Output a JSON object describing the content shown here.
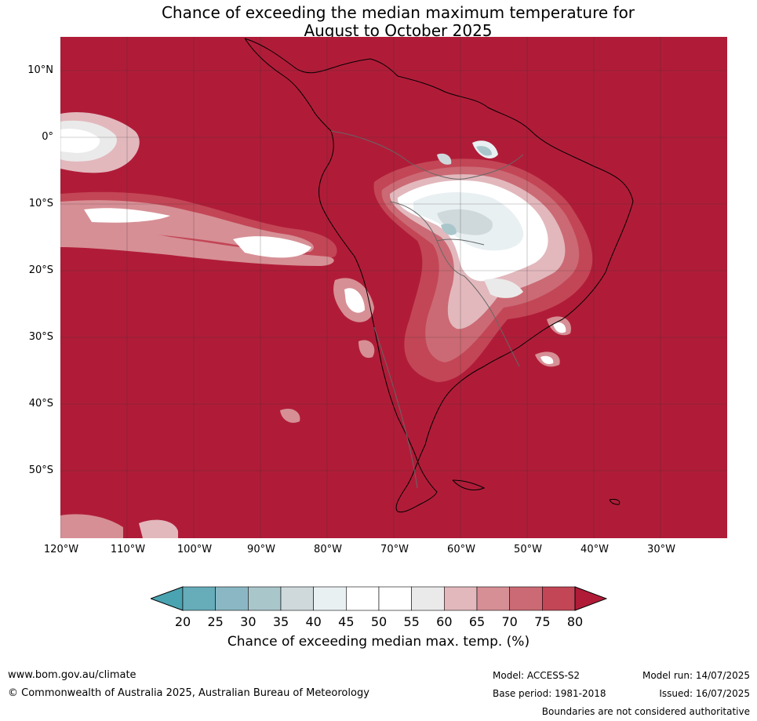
{
  "title": {
    "line1": "Chance of exceeding the median maximum temperature for",
    "line2": "August to October 2025"
  },
  "map": {
    "lat_labels": [
      "10°N",
      "0°",
      "10°S",
      "20°S",
      "30°S",
      "40°S",
      "50°S"
    ],
    "lon_labels": [
      "120°W",
      "110°W",
      "100°W",
      "90°W",
      "80°W",
      "70°W",
      "60°W",
      "50°W",
      "40°W",
      "30°W"
    ],
    "colors": {
      "c80": "#b01c38",
      "c75": "#c34656",
      "c70": "#cb6a74",
      "c65": "#d68f95",
      "c60": "#e2b8bd",
      "c55": "#ebeaea",
      "c50": "#ffffff",
      "c40": "#e9f0f2",
      "c35": "#cfd9dc",
      "c30": "#a9c6cb",
      "c25": "#8ab7c3",
      "c20": "#66acb9"
    }
  },
  "colorbar": {
    "ticks": [
      "20",
      "25",
      "30",
      "35",
      "40",
      "45",
      "50",
      "55",
      "60",
      "65",
      "70",
      "75",
      "80"
    ],
    "colors": [
      "#66acb9",
      "#8ab7c3",
      "#a9c6cb",
      "#cfd9dc",
      "#e9f0f2",
      "#ffffff",
      "#ffffff",
      "#ebeaea",
      "#e2b8bd",
      "#d68f95",
      "#cb6a74",
      "#c34656"
    ],
    "under_color": "#4aa3b1",
    "over_color": "#b01c38",
    "label": "Chance of exceeding median max. temp. (%)"
  },
  "footer": {
    "url": "www.bom.gov.au/climate",
    "copyright": "© Commonwealth of Australia 2025, Australian Bureau of Meteorology",
    "model": "Model: ACCESS-S2",
    "base_period": "Base period: 1981-2018",
    "model_run": "Model run: 14/07/2025",
    "issued": "Issued: 16/07/2025",
    "disclaimer": "Boundaries are not considered authoritative"
  }
}
